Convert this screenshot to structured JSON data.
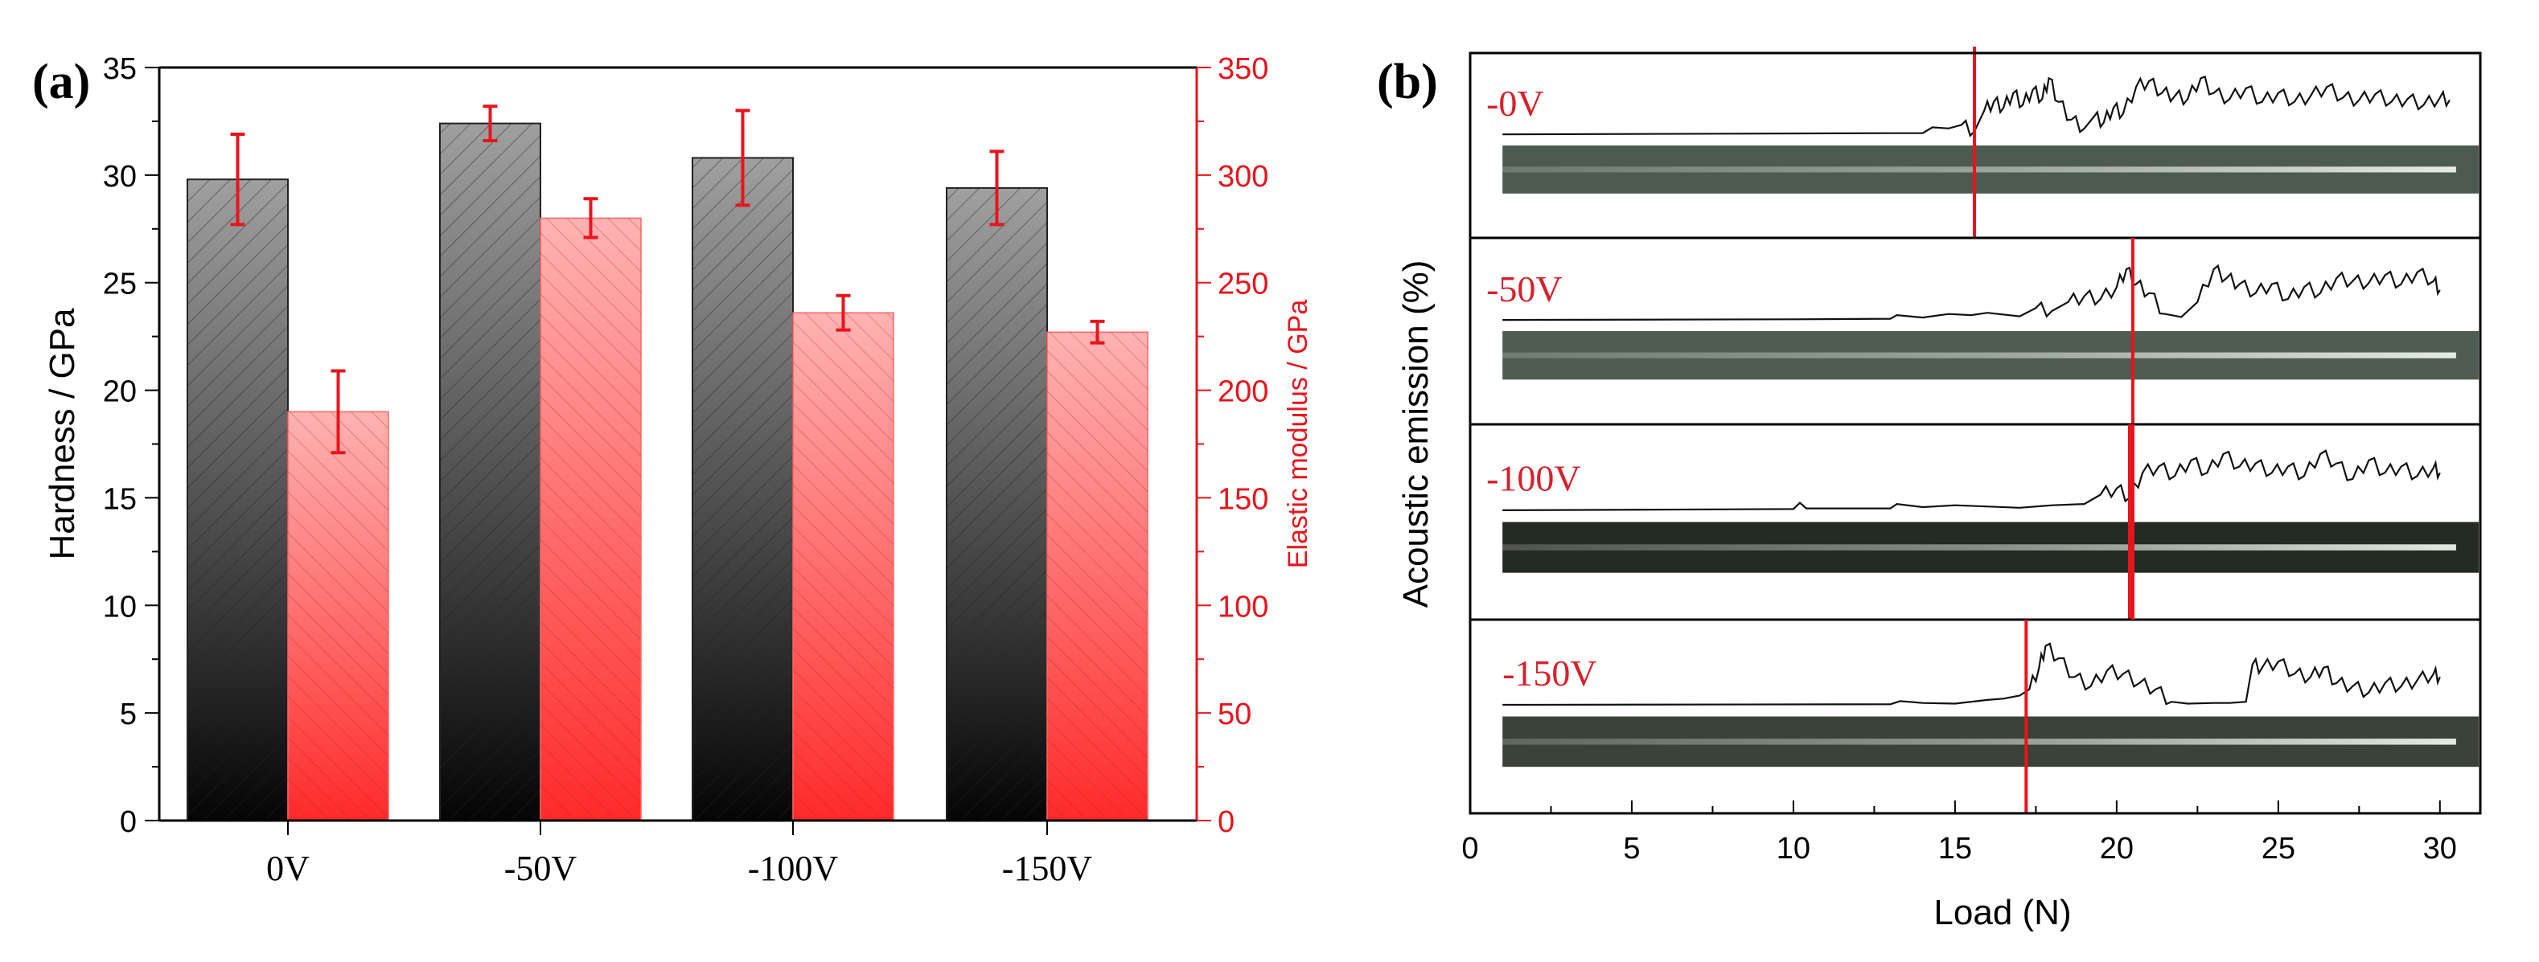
{
  "chart_data": [
    {
      "panel_label": "(a)",
      "type": "bar",
      "categories": [
        "0V",
        "-50V",
        "-100V",
        "-150V"
      ],
      "ylabel": "Hardness / GPa",
      "ylabel_right": "Elastic modulus / GPa",
      "ylim": [
        0,
        35
      ],
      "ylim_right": [
        0,
        350
      ],
      "yticks": [
        "0",
        "5",
        "10",
        "15",
        "20",
        "25",
        "30",
        "35"
      ],
      "yticks_right": [
        "0",
        "50",
        "100",
        "150",
        "200",
        "250",
        "300",
        "350"
      ],
      "series": [
        {
          "name": "Hardness",
          "axis": "left",
          "color": "#555555",
          "values": [
            29.8,
            32.4,
            30.8,
            29.4
          ],
          "errors": [
            2.1,
            0.8,
            2.2,
            1.7
          ]
        },
        {
          "name": "Elastic modulus",
          "axis": "right",
          "color": "#ff4444",
          "values": [
            190,
            280,
            236,
            227
          ],
          "errors": [
            19,
            9,
            8,
            5
          ]
        }
      ],
      "error_bar_color": "#e8141c"
    },
    {
      "panel_label": "(b)",
      "type": "line",
      "xlabel": "Load (N)",
      "ylabel": "Acoustic emission (%)",
      "xlim": [
        0,
        32
      ],
      "xticks": [
        "0",
        "5",
        "10",
        "15",
        "20",
        "25",
        "30"
      ],
      "critical_line_color": "#e8141c",
      "series": [
        {
          "name": "-0V",
          "critical_load": 15.6,
          "x": [
            1,
            13,
            14,
            14.3,
            14.8,
            15.2,
            15.6,
            15.9,
            16.2,
            16.5,
            16.8,
            17.1,
            17.4,
            17.7,
            17.9,
            18.2,
            18.6,
            19,
            19.3,
            19.6,
            19.9,
            20.2,
            20.6,
            21,
            21.4,
            21.8,
            22.2,
            22.6,
            23,
            23.5,
            24,
            24.5,
            25,
            25.5,
            26,
            26.5,
            27,
            27.5,
            28,
            28.5,
            29,
            29.5,
            30,
            30.3
          ],
          "y": [
            0,
            0.02,
            0.02,
            0.12,
            0.1,
            0.16,
            0.05,
            0.4,
            0.55,
            0.45,
            0.7,
            0.5,
            0.75,
            0.6,
            0.95,
            0.55,
            0.25,
            0.1,
            0.3,
            0.2,
            0.45,
            0.35,
            0.8,
            0.9,
            0.7,
            0.65,
            0.6,
            0.95,
            0.7,
            0.6,
            0.78,
            0.55,
            0.7,
            0.55,
            0.65,
            0.8,
            0.62,
            0.58,
            0.68,
            0.55,
            0.6,
            0.5,
            0.62,
            0.58
          ]
        },
        {
          "name": "-50V",
          "critical_load": 20.5,
          "x": [
            1,
            10,
            13,
            13.2,
            14,
            14.8,
            15.5,
            16,
            17,
            17.5,
            18,
            18.5,
            19,
            19.5,
            20,
            20.3,
            20.6,
            21,
            21.5,
            22,
            22.5,
            23,
            23.4,
            23.8,
            24.3,
            24.8,
            25.3,
            25.8,
            26.3,
            26.8,
            27.3,
            27.8,
            28.3,
            28.8,
            29.3,
            29.8,
            30
          ],
          "y": [
            0,
            0.01,
            0.02,
            0.08,
            0.04,
            0.1,
            0.08,
            0.12,
            0.06,
            0.2,
            0.15,
            0.3,
            0.4,
            0.35,
            0.55,
            0.85,
            0.6,
            0.45,
            0.1,
            0.05,
            0.3,
            0.85,
            0.7,
            0.6,
            0.45,
            0.6,
            0.35,
            0.55,
            0.45,
            0.7,
            0.65,
            0.62,
            0.75,
            0.6,
            0.8,
            0.65,
            0.5
          ]
        },
        {
          "name": "-100V",
          "critical_load": 20.4,
          "x": [
            1,
            10,
            10.2,
            10.4,
            13,
            13.2,
            14,
            15,
            17,
            18,
            19,
            19.5,
            20,
            20.4,
            20.8,
            21.3,
            21.8,
            22.3,
            22.8,
            23.3,
            23.8,
            24.3,
            24.8,
            25.3,
            25.8,
            26.3,
            26.8,
            27.3,
            27.8,
            28.3,
            28.8,
            29.3,
            29.8,
            30
          ],
          "y": [
            0,
            0.02,
            0.12,
            0.03,
            0.03,
            0.1,
            0.05,
            0.08,
            0.04,
            0.08,
            0.1,
            0.25,
            0.35,
            0.2,
            0.6,
            0.7,
            0.55,
            0.8,
            0.6,
            0.9,
            0.7,
            0.75,
            0.6,
            0.7,
            0.55,
            0.9,
            0.75,
            0.5,
            0.8,
            0.6,
            0.7,
            0.55,
            0.68,
            0.6
          ]
        },
        {
          "name": "-150V",
          "critical_load": 17.2,
          "x": [
            1,
            13,
            13.3,
            14,
            15,
            16,
            16.5,
            17,
            17.3,
            17.6,
            17.8,
            18.2,
            18.7,
            19.2,
            19.7,
            20.2,
            20.7,
            21.2,
            21.7,
            22.2,
            23,
            23.5,
            24,
            24.2,
            24.5,
            25,
            25.5,
            26,
            26.4,
            26.8,
            27.3,
            27.8,
            28.3,
            28.8,
            29.3,
            29.8,
            30
          ],
          "y": [
            0,
            0.01,
            0.06,
            0.03,
            0.02,
            0.08,
            0.1,
            0.15,
            0.25,
            0.6,
            0.95,
            0.75,
            0.45,
            0.3,
            0.55,
            0.5,
            0.35,
            0.25,
            0.05,
            0.02,
            0.03,
            0.03,
            0.05,
            0.65,
            0.6,
            0.7,
            0.5,
            0.45,
            0.6,
            0.35,
            0.3,
            0.2,
            0.35,
            0.3,
            0.4,
            0.5,
            0.45
          ]
        }
      ]
    }
  ]
}
